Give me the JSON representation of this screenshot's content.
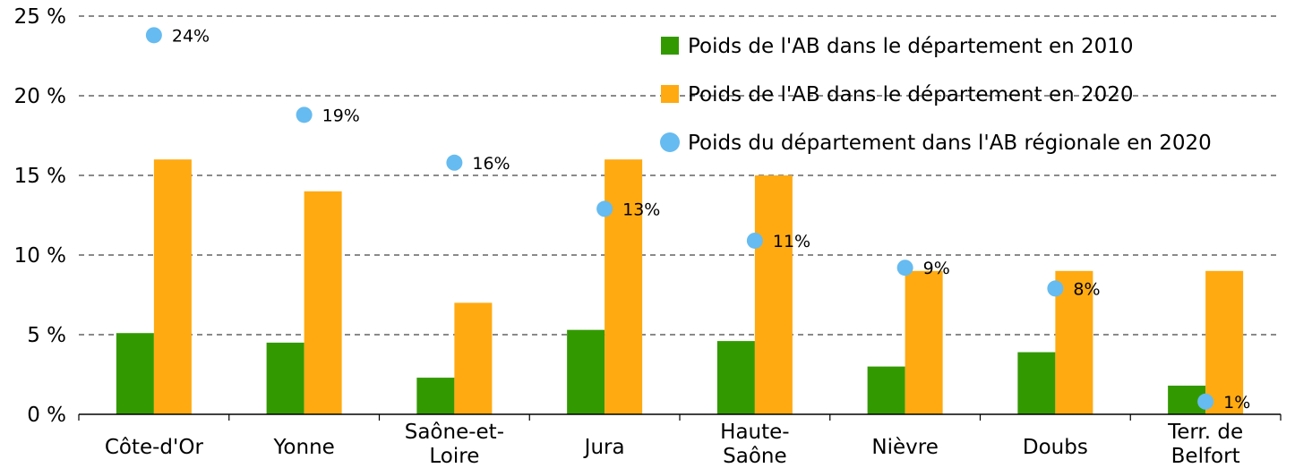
{
  "chart_data": {
    "type": "bar",
    "title": "",
    "xlabel": "",
    "ylabel": "",
    "ylim": [
      0,
      25
    ],
    "yticks": [
      0,
      5,
      10,
      15,
      20,
      25
    ],
    "ytick_labels": [
      "0 %",
      "5 %",
      "10 %",
      "15 %",
      "20 %",
      "25 %"
    ],
    "grid": true,
    "legend_position": "top-right",
    "categories": [
      [
        "Côte-d'Or"
      ],
      [
        "Yonne"
      ],
      [
        "Saône-et-",
        "Loire"
      ],
      [
        "Jura"
      ],
      [
        "Haute-",
        "Saône"
      ],
      [
        "Nièvre"
      ],
      [
        "Doubs"
      ],
      [
        "Terr. de",
        "Belfort"
      ]
    ],
    "series": [
      {
        "name": "Poids de l'AB dans le département en 2010",
        "kind": "bar",
        "color": "#339900",
        "values": [
          5.1,
          4.5,
          2.3,
          5.3,
          4.6,
          3.0,
          3.9,
          1.8
        ]
      },
      {
        "name": "Poids de l'AB dans le département en 2020",
        "kind": "bar",
        "color": "#ffaa11",
        "values": [
          16,
          14,
          7,
          16,
          15,
          9,
          9,
          9
        ]
      },
      {
        "name": "Poids du département dans l'AB régionale en 2020",
        "kind": "point",
        "color": "#66bbf0",
        "values": [
          23.8,
          18.8,
          15.8,
          12.9,
          10.9,
          9.2,
          7.9,
          0.8
        ],
        "labels": [
          "24%",
          "19%",
          "16%",
          "13%",
          "11%",
          "9%",
          "8%",
          "1%"
        ]
      }
    ]
  }
}
